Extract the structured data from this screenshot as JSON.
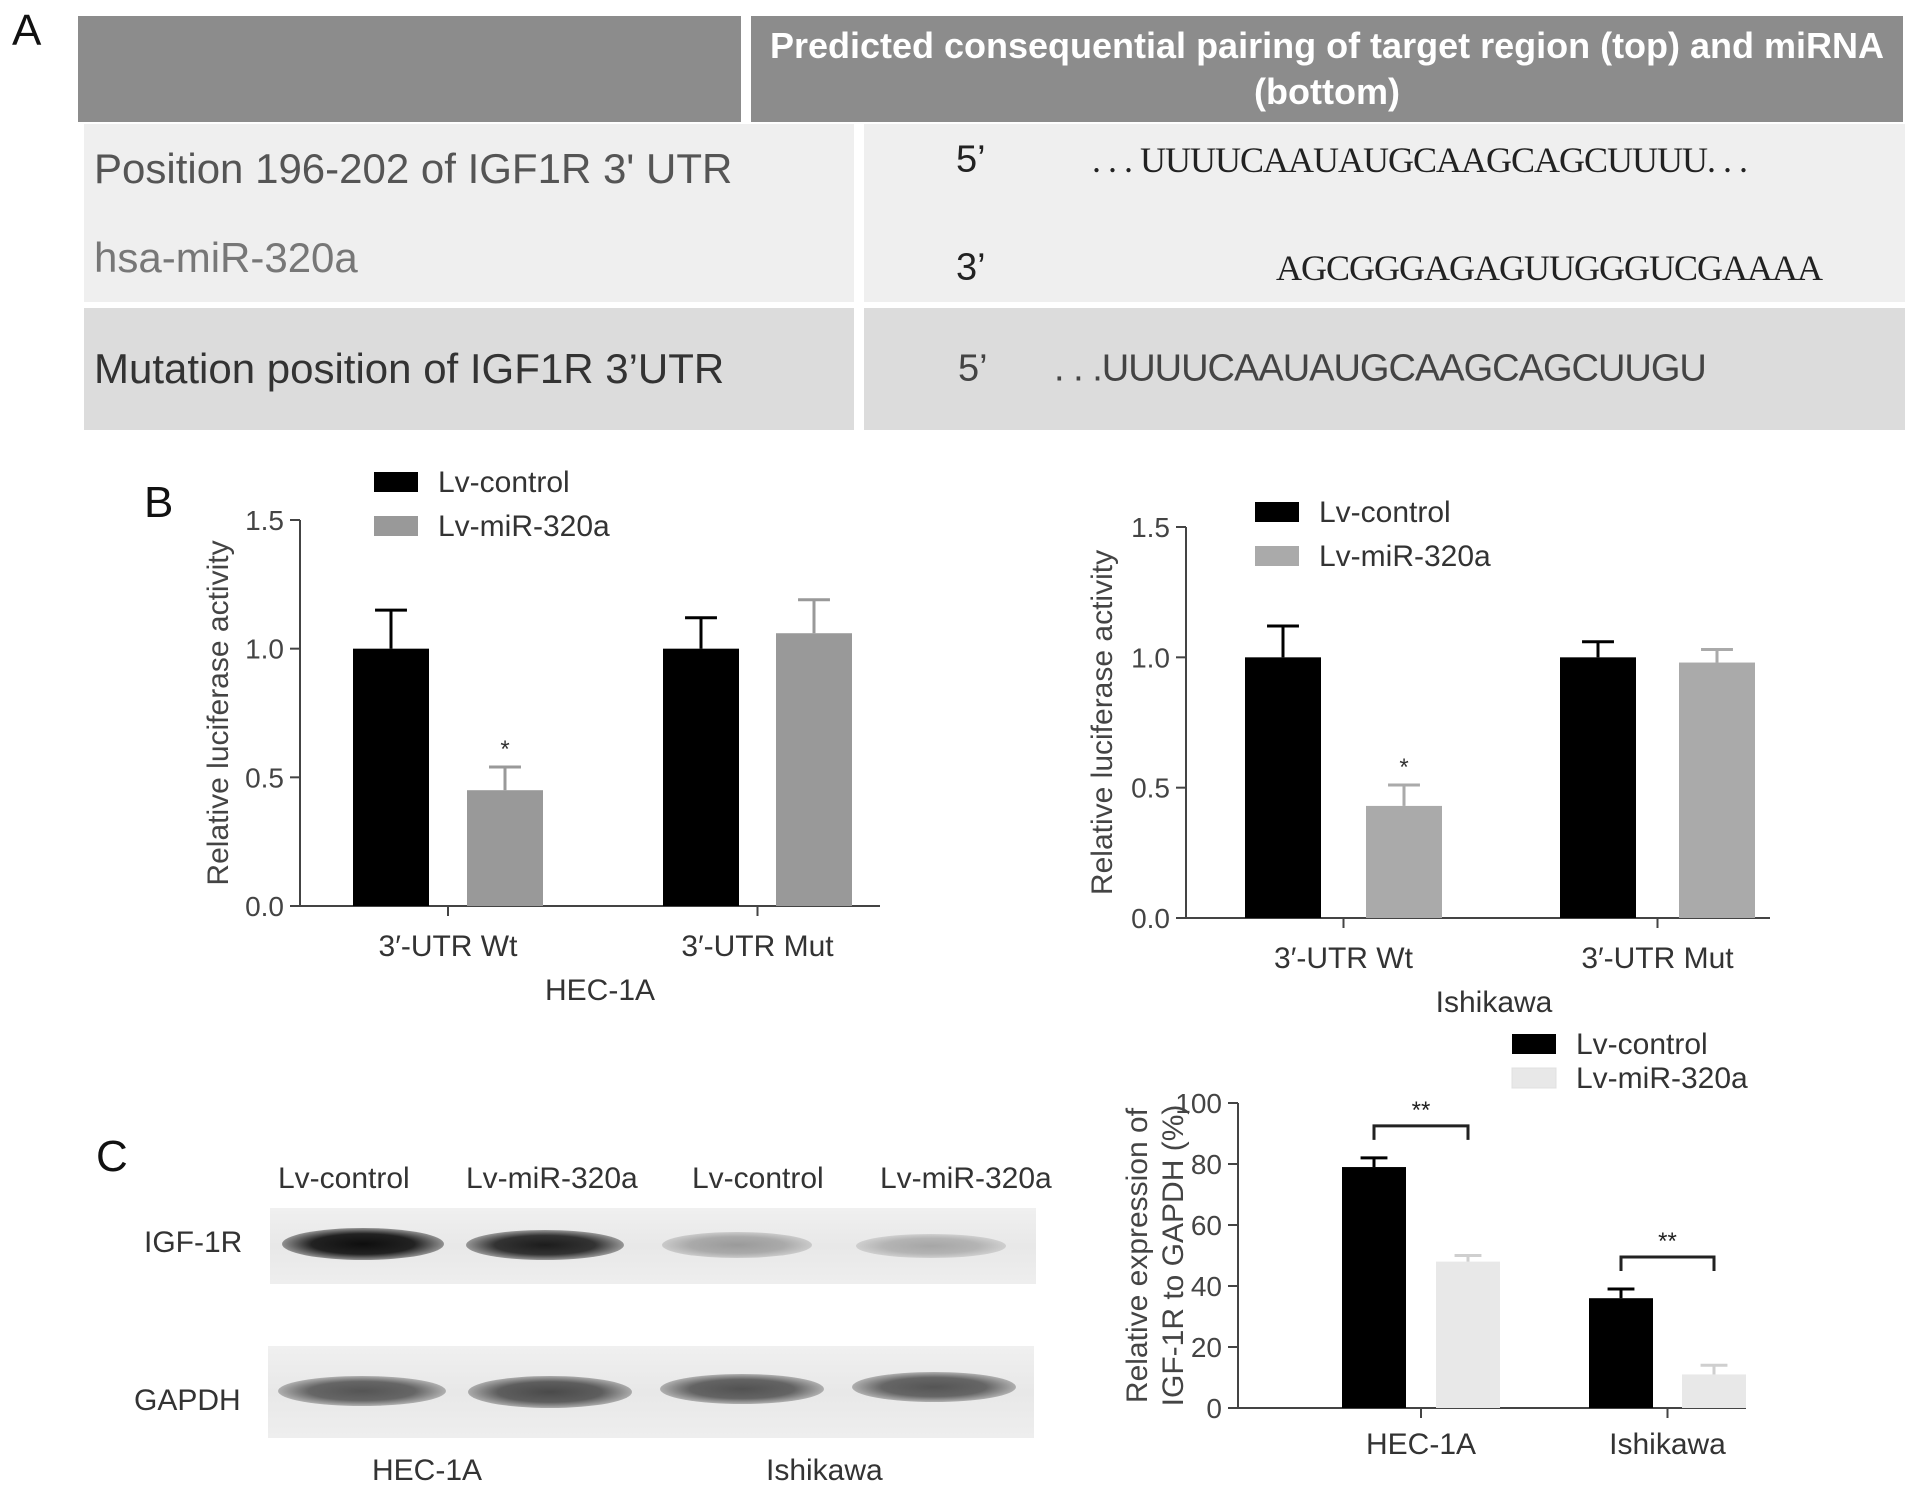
{
  "panels": {
    "a": "A",
    "b": "B",
    "c": "C"
  },
  "table": {
    "header": "Predicted consequential pairing of target region (top) and miRNA (bottom)",
    "rows": [
      {
        "label": "Position 196-202 of IGF1R 3' UTR",
        "end": "5’",
        "sequence": ". . . UUUUCAAUAUGCAAGCAGCUUUU. . ."
      },
      {
        "label": "hsa-miR-320a",
        "end": "3’",
        "sequence": "AGCGGGAGAGUUGGGUCGAAAA"
      },
      {
        "label": "Mutation position of IGF1R 3’UTR",
        "end": "5’",
        "sequence": ". . .UUUUCAAUAUGCAAGCAGCUUGU"
      }
    ]
  },
  "chart_data": [
    {
      "type": "bar",
      "xlabel": "HEC-1A",
      "ylabel": "Relative luciferase activity",
      "ylim": [
        0,
        1.5
      ],
      "yticks": [
        "0.0",
        "0.5",
        "1.0",
        "1.5"
      ],
      "categories": [
        "3′-UTR Wt",
        "3′-UTR Mut"
      ],
      "series": [
        {
          "name": "Lv-control",
          "values": [
            1.0,
            1.0
          ],
          "errors": [
            0.15,
            0.12
          ],
          "color": "#000000"
        },
        {
          "name": "Lv-miR-320a",
          "values": [
            0.45,
            1.06
          ],
          "errors": [
            0.09,
            0.13
          ],
          "color": "#999999"
        }
      ],
      "annotations": [
        {
          "category": 0,
          "series": 1,
          "text": "*"
        }
      ],
      "legend": "top-left"
    },
    {
      "type": "bar",
      "xlabel": "Ishikawa",
      "ylabel": "Relative luciferase activity",
      "ylim": [
        0,
        1.5
      ],
      "yticks": [
        "0.0",
        "0.5",
        "1.0",
        "1.5"
      ],
      "categories": [
        "3′-UTR Wt",
        "3′-UTR Mut"
      ],
      "series": [
        {
          "name": "Lv-control",
          "values": [
            1.0,
            1.0
          ],
          "errors": [
            0.12,
            0.06
          ],
          "color": "#000000"
        },
        {
          "name": "Lv-miR-320a",
          "values": [
            0.43,
            0.98
          ],
          "errors": [
            0.08,
            0.05
          ],
          "color": "#aaaaaa"
        }
      ],
      "annotations": [
        {
          "category": 0,
          "series": 1,
          "text": "*"
        }
      ],
      "legend": "top-left"
    },
    {
      "type": "bar",
      "xlabel": "",
      "ylabel": "Relative expression of IGF-1R to GAPDH (%)",
      "ylabel_lines": [
        "Relative expression of",
        "IGF-1R to GAPDH (%)"
      ],
      "ylim": [
        0,
        100
      ],
      "yticks": [
        "0",
        "20",
        "40",
        "60",
        "80",
        "100"
      ],
      "categories": [
        "HEC-1A",
        "Ishikawa"
      ],
      "series": [
        {
          "name": "Lv-control",
          "values": [
            79,
            36
          ],
          "errors": [
            3,
            3
          ],
          "color": "#000000"
        },
        {
          "name": "Lv-miR-320a",
          "values": [
            48,
            11
          ],
          "errors": [
            2,
            3
          ],
          "color": "#e8e8e8"
        }
      ],
      "annotations": [
        {
          "category": 0,
          "text": "**"
        },
        {
          "category": 1,
          "text": "**"
        }
      ],
      "legend": "top-right"
    }
  ],
  "blot": {
    "lanes": [
      "Lv-control",
      "Lv-miR-320a",
      "Lv-control",
      "Lv-miR-320a"
    ],
    "rows": [
      "IGF-1R",
      "GAPDH"
    ],
    "cell_lines": [
      "HEC-1A",
      "Ishikawa"
    ]
  }
}
